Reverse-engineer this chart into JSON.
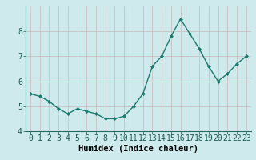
{
  "x": [
    0,
    1,
    2,
    3,
    4,
    5,
    6,
    7,
    8,
    9,
    10,
    11,
    12,
    13,
    14,
    15,
    16,
    17,
    18,
    19,
    20,
    21,
    22,
    23
  ],
  "y": [
    5.5,
    5.4,
    5.2,
    4.9,
    4.7,
    4.9,
    4.8,
    4.7,
    4.5,
    4.5,
    4.6,
    5.0,
    5.5,
    6.6,
    7.0,
    7.8,
    8.5,
    7.9,
    7.3,
    6.6,
    6.0,
    6.3,
    6.7,
    7.0
  ],
  "xlabel": "Humidex (Indice chaleur)",
  "ylim": [
    4,
    9
  ],
  "xlim": [
    -0.5,
    23.5
  ],
  "yticks": [
    4,
    5,
    6,
    7,
    8
  ],
  "xticks": [
    0,
    1,
    2,
    3,
    4,
    5,
    6,
    7,
    8,
    9,
    10,
    11,
    12,
    13,
    14,
    15,
    16,
    17,
    18,
    19,
    20,
    21,
    22,
    23
  ],
  "line_color": "#1a7a6e",
  "marker_color": "#1a7a6e",
  "bg_color": "#ceeaec",
  "grid_color": "#c8b8b8",
  "xlabel_fontsize": 7.5,
  "tick_fontsize": 7.0
}
